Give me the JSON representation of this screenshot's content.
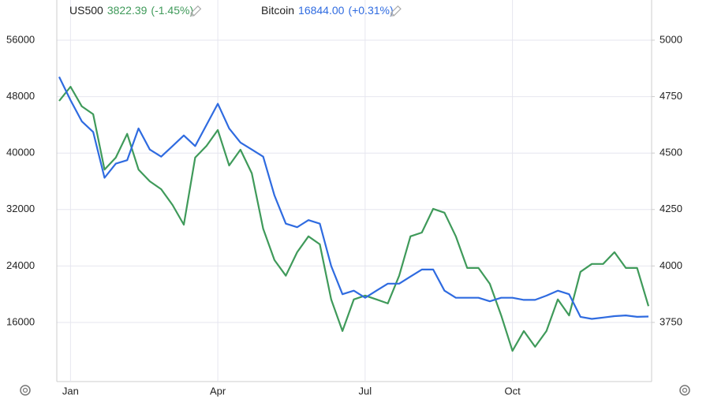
{
  "chart_data": {
    "type": "line",
    "categories": [
      null,
      "Jan",
      null,
      null,
      null,
      null,
      null,
      null,
      null,
      null,
      null,
      null,
      null,
      null,
      "Apr",
      null,
      null,
      null,
      null,
      null,
      null,
      null,
      null,
      null,
      null,
      null,
      null,
      "Jul",
      null,
      null,
      null,
      null,
      null,
      null,
      null,
      null,
      null,
      null,
      null,
      null,
      "Oct",
      null,
      null,
      null,
      null,
      null,
      null,
      null,
      null,
      null,
      null,
      null,
      null
    ],
    "series": [
      {
        "name": "US500",
        "color": "#3f9a5a",
        "axis": "y2",
        "last": {
          "value": 3822.39,
          "label": "3822.39"
        },
        "change": "(-1.45%)",
        "values": [
          4731,
          4794,
          4707,
          4672,
          4427,
          4480,
          4585,
          4427,
          4375,
          4340,
          4270,
          4183,
          4480,
          4532,
          4602,
          4445,
          4515,
          4410,
          4165,
          4026,
          3957,
          4061,
          4131,
          4096,
          3852,
          3712,
          3852,
          3869,
          3852,
          3834,
          3957,
          4131,
          4148,
          4253,
          4236,
          4131,
          3991,
          3991,
          3921,
          3781,
          3624,
          3712,
          3642,
          3712,
          3852,
          3781,
          3974,
          4009,
          4009,
          4061,
          3991,
          3991,
          3822
        ]
      },
      {
        "name": "Bitcoin",
        "color": "#2f6be0",
        "axis": "y",
        "last": {
          "value": 16844,
          "label": "16844.00"
        },
        "change": "(+0.31%)",
        "values": [
          50800,
          47500,
          44500,
          43000,
          36500,
          38500,
          39000,
          43500,
          40500,
          39500,
          41000,
          42500,
          41000,
          44000,
          47000,
          43500,
          41500,
          40500,
          39500,
          34000,
          30000,
          29500,
          30500,
          30000,
          24000,
          20000,
          20500,
          19500,
          20500,
          21500,
          21500,
          22500,
          23500,
          23500,
          20500,
          19500,
          19500,
          19500,
          19000,
          19500,
          19500,
          19200,
          19200,
          19800,
          20500,
          20000,
          16800,
          16500,
          16700,
          16900,
          17000,
          16800,
          16844
        ]
      }
    ],
    "ylim": [
      8070,
      60580
    ],
    "yticks": [
      16000,
      24000,
      32000,
      40000,
      48000,
      56000
    ],
    "y2lim": [
      3502,
      5143
    ],
    "y2ticks": [
      3750,
      4000,
      4250,
      4500,
      4750,
      5000
    ],
    "grid": true
  }
}
